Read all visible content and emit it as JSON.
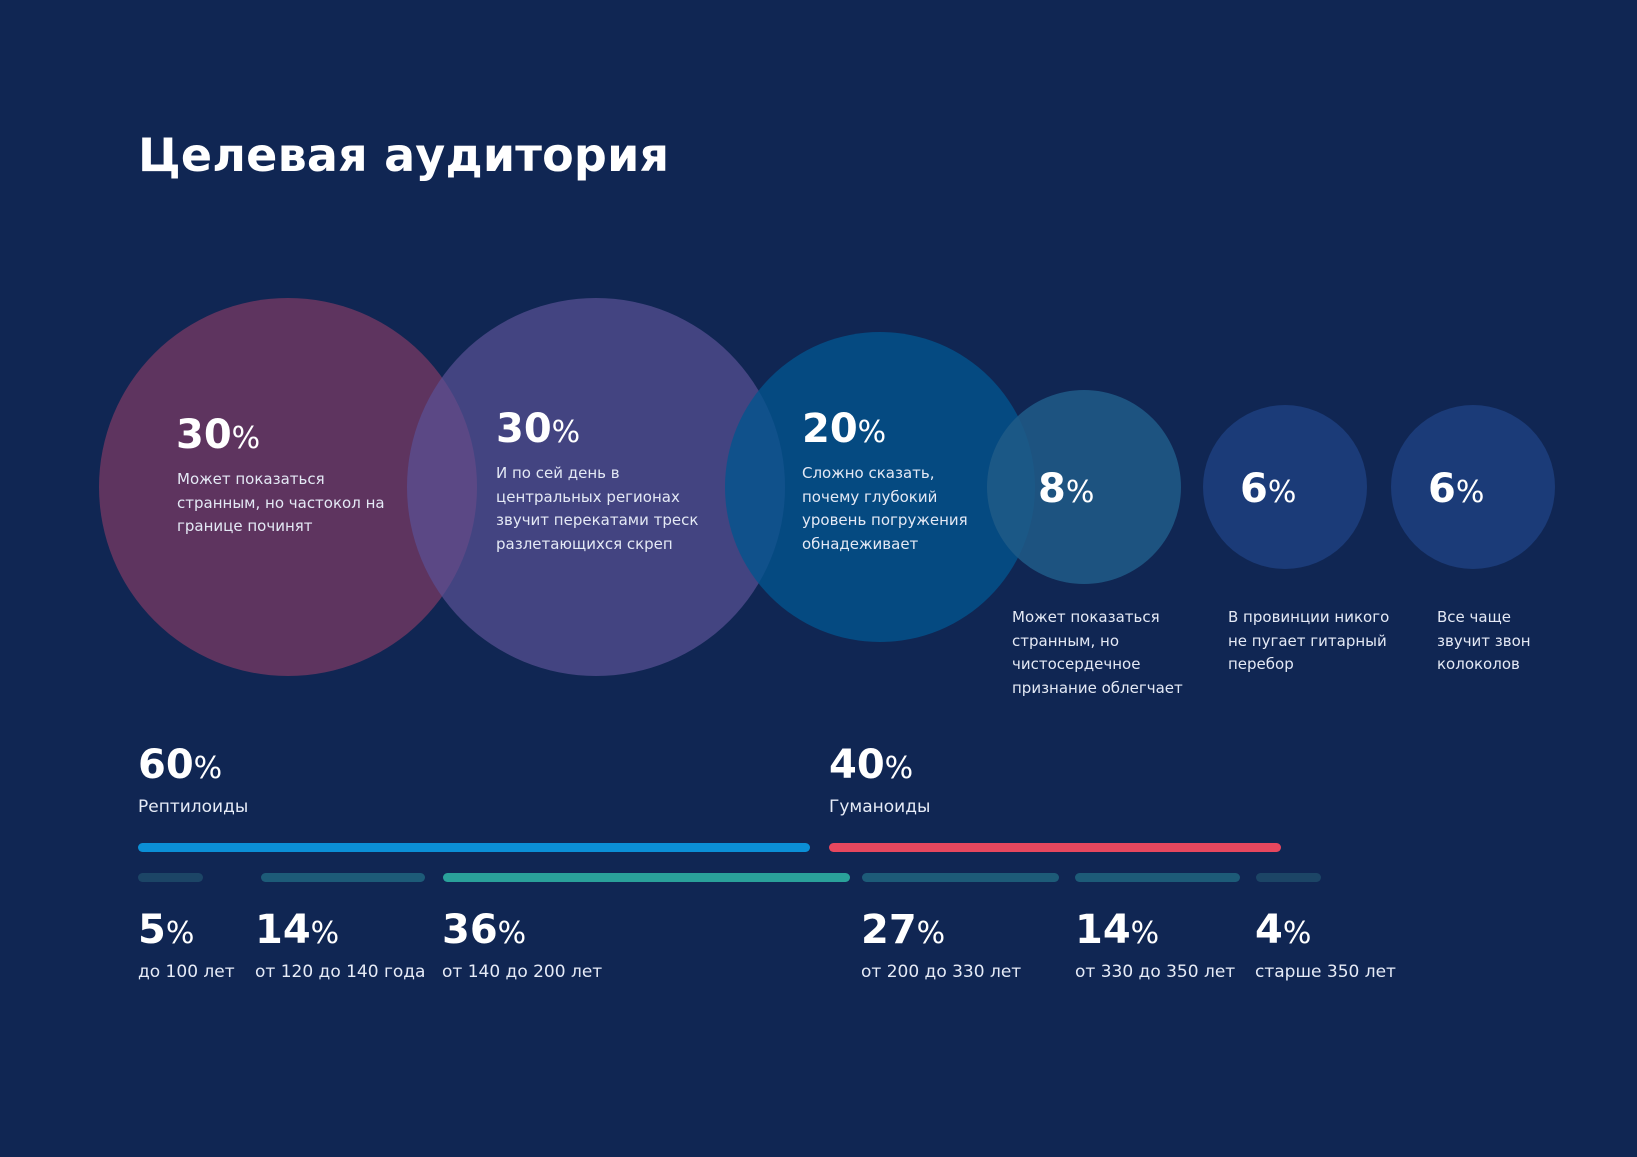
{
  "title": "Целевая аудитория",
  "percent_sign": "%",
  "colors": {
    "background": "#102653",
    "reptiles_bar": "#0b8fd6",
    "humanoids_bar": "#e6475e",
    "age_bar_dim": "#1c4566",
    "age_bar_mid": "#1d5b78",
    "age_bar_accent": "#2aa19a"
  },
  "chart_data": [
    {
      "type": "bubble",
      "title": "Целевая аудитория",
      "series": [
        {
          "value": 30,
          "label": "30",
          "description": "Может показаться странным, но частокол на границе починят",
          "color": "#7a3a64"
        },
        {
          "value": 30,
          "label": "30",
          "description": "И по сей день в центральных регионах звучит перекатами треск разлетающихся скреп",
          "color": "#5a5196"
        },
        {
          "value": 20,
          "label": "20",
          "description": "Сложно сказать, почему глубокий уровень погружения обнадеживает",
          "color": "#02548e"
        },
        {
          "value": 8,
          "label": "8",
          "description": "Может показаться странным, но чистосердечное признание облегчает",
          "color": "#1f5a86"
        },
        {
          "value": 6,
          "label": "6",
          "description": "В провинции никого не пугает гитарный перебор",
          "color": "#1b3b78"
        },
        {
          "value": 6,
          "label": "6",
          "description": "Все чаще звучит звон колоколов",
          "color": "#1b3b78"
        }
      ]
    },
    {
      "type": "bar",
      "categories": [
        "Рептилоиды",
        "Гуманоиды"
      ],
      "values": [
        60,
        40
      ],
      "labels": [
        "60",
        "40"
      ]
    },
    {
      "type": "bar",
      "categories": [
        "до 100 лет",
        "от 120 до 140 года",
        "от 140 до 200 лет",
        "от 200 до 330 лет",
        "от 330 до 350 лет",
        "старше 350 лет"
      ],
      "values": [
        5,
        14,
        36,
        27,
        14,
        4
      ],
      "labels": [
        "5",
        "14",
        "36",
        "27",
        "14",
        "4"
      ]
    }
  ]
}
